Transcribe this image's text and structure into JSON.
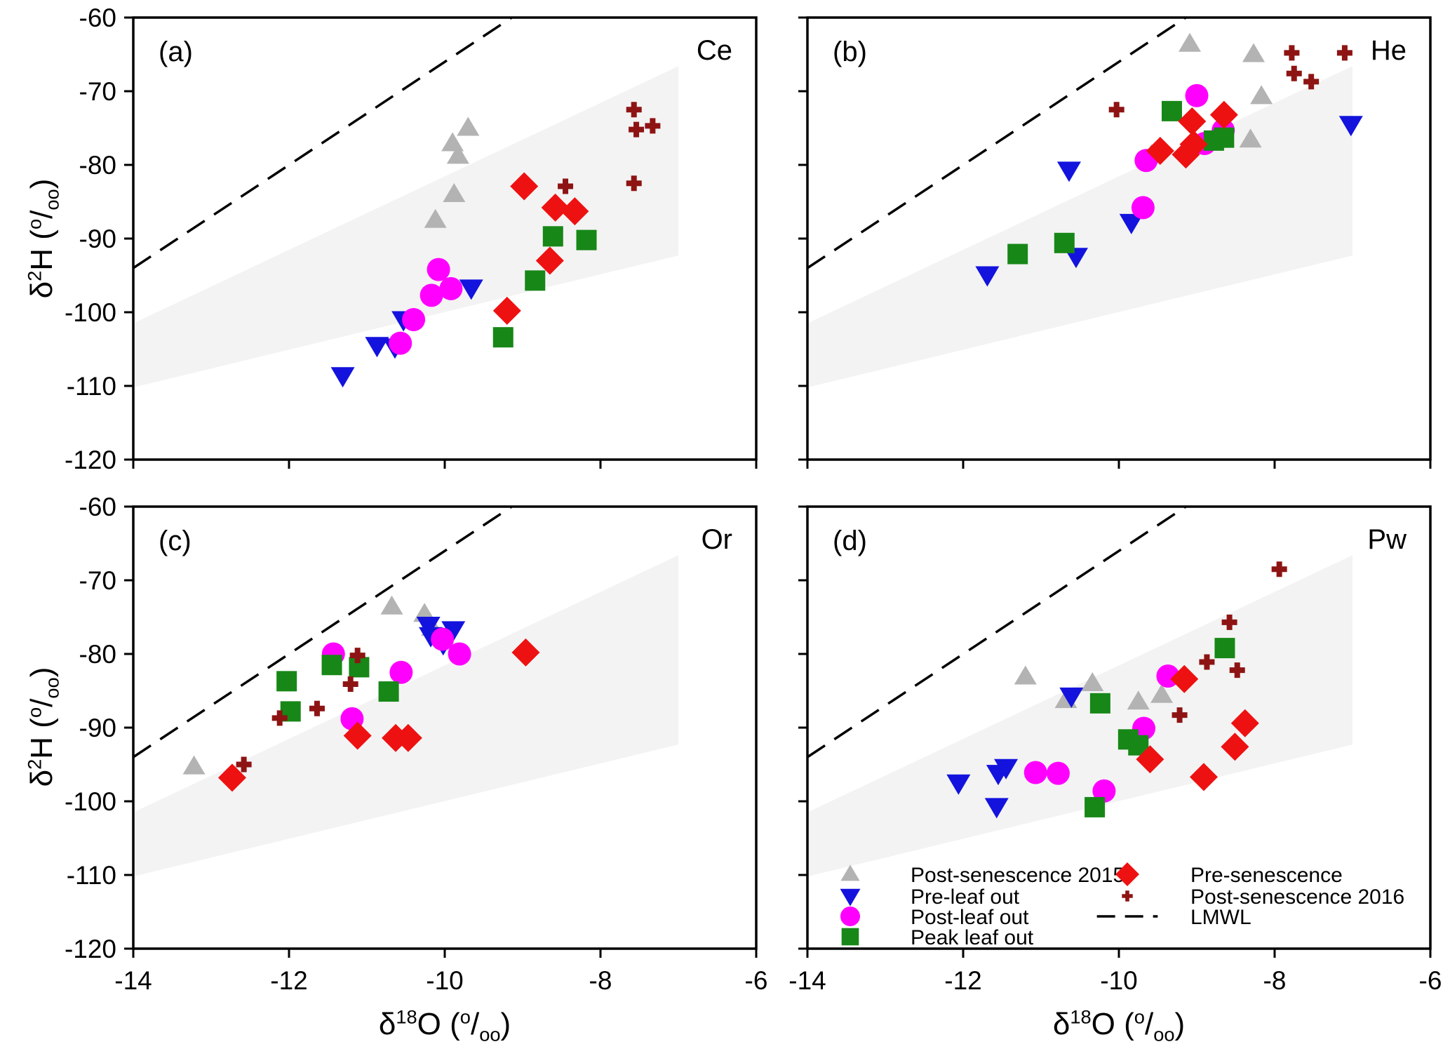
{
  "figure": {
    "panel_letters": [
      "(a)",
      "(b)",
      "(c)",
      "(d)"
    ],
    "site_codes": [
      "Ce",
      "He",
      "Or",
      "Pw"
    ]
  },
  "chart_data": {
    "type": "scatter",
    "xlim": [
      -14,
      -6
    ],
    "ylim": [
      -120,
      -60
    ],
    "x_ticks": [
      -14,
      -12,
      -10,
      -8,
      -6
    ],
    "y_ticks": [
      -60,
      -70,
      -80,
      -90,
      -100,
      -110,
      -120
    ],
    "grid": false,
    "xlabel_rich": [
      {
        "t": "δ",
        "v": "n"
      },
      {
        "t": "18",
        "v": "sup"
      },
      {
        "t": "O",
        "v": "n"
      },
      {
        "t": " (",
        "v": "n"
      },
      {
        "t": "o",
        "v": "sup"
      },
      {
        "t": "/",
        "v": "n"
      },
      {
        "t": "oo",
        "v": "sub"
      },
      {
        "t": ")",
        "v": "n"
      }
    ],
    "ylabel_rich": [
      {
        "t": "δ",
        "v": "n"
      },
      {
        "t": "2",
        "v": "sup"
      },
      {
        "t": "H",
        "v": "n"
      },
      {
        "t": " (",
        "v": "n"
      },
      {
        "t": "o",
        "v": "sup"
      },
      {
        "t": "/",
        "v": "n"
      },
      {
        "t": "oo",
        "v": "sub"
      },
      {
        "t": ")",
        "v": "n"
      }
    ],
    "colors": {
      "post2015": "#b3b3b3",
      "preleaf": "#1313dd",
      "postleaf": "#ff00ff",
      "peak": "#178717",
      "presen": "#ee1111",
      "post2016": "#8e1414",
      "lmwl": "#000000",
      "wedge": "#f3f3f3"
    },
    "series_defs": [
      {
        "key": "post2015",
        "label": "Post-senescence 2015",
        "marker": "triangle-up"
      },
      {
        "key": "preleaf",
        "label": "Pre-leaf out",
        "marker": "triangle-down"
      },
      {
        "key": "postleaf",
        "label": "Post-leaf out",
        "marker": "circle"
      },
      {
        "key": "peak",
        "label": "Peak leaf out",
        "marker": "square"
      },
      {
        "key": "presen",
        "label": "Pre-senescence",
        "marker": "diamond"
      },
      {
        "key": "post2016",
        "label": "Post-senescence 2016",
        "marker": "plus"
      },
      {
        "key": "lmwl",
        "label": "LMWL",
        "marker": "dash"
      }
    ],
    "legend": {
      "position": "bottom-right-panel-d",
      "col1": [
        "post2015",
        "preleaf",
        "postleaf",
        "peak"
      ],
      "col2": [
        "presen",
        "post2016",
        "lmwl"
      ]
    },
    "lmwl_line": {
      "x1": -14,
      "y1": -94.0,
      "x2": -9.14,
      "y2": -60.0
    },
    "wedge_polygon": [
      [
        -14,
        -101.5
      ],
      [
        -7.0,
        -66.6
      ],
      [
        -7.0,
        -92.3
      ],
      [
        -14,
        -110.2
      ]
    ],
    "panels": [
      {
        "id": "a",
        "letter": "(a)",
        "site": "Ce",
        "series": {
          "post2015": [
            [
              -9.7,
              -75.0
            ],
            [
              -9.9,
              -77.1
            ],
            [
              -9.83,
              -78.8
            ],
            [
              -9.88,
              -84.0
            ],
            [
              -10.12,
              -87.5
            ]
          ],
          "preleaf": [
            [
              -9.66,
              -96.7
            ],
            [
              -10.53,
              -101.0
            ],
            [
              -10.64,
              -104.7
            ],
            [
              -10.87,
              -104.5
            ],
            [
              -11.31,
              -108.6
            ]
          ],
          "postleaf": [
            [
              -10.08,
              -94.2
            ],
            [
              -9.92,
              -96.8
            ],
            [
              -10.17,
              -97.7
            ],
            [
              -10.4,
              -101.0
            ],
            [
              -10.57,
              -104.2
            ]
          ],
          "peak": [
            [
              -8.61,
              -89.7
            ],
            [
              -8.18,
              -90.2
            ],
            [
              -8.84,
              -95.7
            ],
            [
              -9.25,
              -103.4
            ]
          ],
          "presen": [
            [
              -8.98,
              -82.9
            ],
            [
              -8.58,
              -85.8
            ],
            [
              -8.33,
              -86.3
            ],
            [
              -8.65,
              -93.0
            ],
            [
              -9.2,
              -99.8
            ]
          ],
          "post2016": [
            [
              -7.57,
              -72.5
            ],
            [
              -7.54,
              -75.2
            ],
            [
              -7.33,
              -74.7
            ],
            [
              -7.57,
              -82.5
            ],
            [
              -8.45,
              -82.9
            ]
          ]
        }
      },
      {
        "id": "b",
        "letter": "(b)",
        "site": "He",
        "series": {
          "post2015": [
            [
              -9.09,
              -63.6
            ],
            [
              -8.27,
              -65.0
            ],
            [
              -8.17,
              -70.7
            ],
            [
              -8.31,
              -76.6
            ],
            [
              -9.58,
              -78.7
            ]
          ],
          "preleaf": [
            [
              -7.02,
              -74.5
            ],
            [
              -10.64,
              -80.7
            ],
            [
              -9.84,
              -87.8
            ],
            [
              -10.55,
              -92.4
            ],
            [
              -11.69,
              -94.9
            ]
          ],
          "postleaf": [
            [
              -9.0,
              -70.6
            ],
            [
              -8.66,
              -75.3
            ],
            [
              -8.9,
              -77.1
            ],
            [
              -9.65,
              -79.4
            ],
            [
              -9.69,
              -85.8
            ]
          ],
          "peak": [
            [
              -9.32,
              -72.7
            ],
            [
              -8.78,
              -76.7
            ],
            [
              -8.65,
              -76.3
            ],
            [
              -10.7,
              -90.6
            ],
            [
              -11.3,
              -92.1
            ]
          ],
          "presen": [
            [
              -8.65,
              -73.2
            ],
            [
              -9.06,
              -74.1
            ],
            [
              -9.04,
              -77.2
            ],
            [
              -9.47,
              -78.1
            ],
            [
              -9.14,
              -78.6
            ]
          ],
          "post2016": [
            [
              -10.03,
              -72.5
            ],
            [
              -7.78,
              -64.8
            ],
            [
              -7.1,
              -64.8
            ],
            [
              -7.75,
              -67.6
            ],
            [
              -7.53,
              -68.7
            ]
          ]
        }
      },
      {
        "id": "c",
        "letter": "(c)",
        "site": "Or",
        "series": {
          "post2015": [
            [
              -10.68,
              -73.6
            ],
            [
              -10.26,
              -74.6
            ],
            [
              -10.16,
              -76.5
            ],
            [
              -13.22,
              -95.3
            ]
          ],
          "preleaf": [
            [
              -10.21,
              -76.1
            ],
            [
              -9.89,
              -76.7
            ],
            [
              -10.18,
              -77.5
            ],
            [
              -10.02,
              -78.6
            ]
          ],
          "postleaf": [
            [
              -10.03,
              -78.0
            ],
            [
              -9.81,
              -80.0
            ],
            [
              -11.43,
              -80.0
            ],
            [
              -10.56,
              -82.5
            ],
            [
              -11.19,
              -88.8
            ]
          ],
          "peak": [
            [
              -11.45,
              -81.5
            ],
            [
              -11.1,
              -81.8
            ],
            [
              -12.03,
              -83.7
            ],
            [
              -10.72,
              -85.1
            ],
            [
              -11.98,
              -87.8
            ]
          ],
          "presen": [
            [
              -8.96,
              -79.8
            ],
            [
              -11.12,
              -91.1
            ],
            [
              -10.63,
              -91.4
            ],
            [
              -10.47,
              -91.4
            ],
            [
              -12.73,
              -96.8
            ]
          ],
          "post2016": [
            [
              -11.12,
              -80.2
            ],
            [
              -11.21,
              -84.1
            ],
            [
              -11.64,
              -87.4
            ],
            [
              -12.12,
              -88.7
            ],
            [
              -12.58,
              -95.0
            ]
          ]
        }
      },
      {
        "id": "d",
        "letter": "(d)",
        "site": "Pw",
        "series": {
          "post2015": [
            [
              -11.2,
              -83.1
            ],
            [
              -10.34,
              -84.0
            ],
            [
              -10.68,
              -86.3
            ],
            [
              -9.75,
              -86.5
            ],
            [
              -9.45,
              -85.6
            ]
          ],
          "preleaf": [
            [
              -10.61,
              -85.7
            ],
            [
              -11.45,
              -95.4
            ],
            [
              -11.55,
              -96.2
            ],
            [
              -12.06,
              -97.5
            ],
            [
              -11.57,
              -100.7
            ]
          ],
          "postleaf": [
            [
              -9.37,
              -83.0
            ],
            [
              -9.68,
              -90.1
            ],
            [
              -11.07,
              -96.1
            ],
            [
              -10.78,
              -96.2
            ],
            [
              -10.19,
              -98.6
            ]
          ],
          "peak": [
            [
              -8.64,
              -79.2
            ],
            [
              -10.24,
              -86.7
            ],
            [
              -9.88,
              -91.6
            ],
            [
              -9.75,
              -92.4
            ],
            [
              -10.31,
              -100.8
            ]
          ],
          "presen": [
            [
              -9.16,
              -83.4
            ],
            [
              -8.38,
              -89.4
            ],
            [
              -9.6,
              -94.3
            ],
            [
              -8.51,
              -92.6
            ],
            [
              -8.91,
              -96.7
            ]
          ],
          "post2016": [
            [
              -7.94,
              -68.5
            ],
            [
              -8.58,
              -75.7
            ],
            [
              -8.87,
              -81.1
            ],
            [
              -8.48,
              -82.2
            ],
            [
              -9.22,
              -88.3
            ]
          ]
        }
      }
    ]
  }
}
